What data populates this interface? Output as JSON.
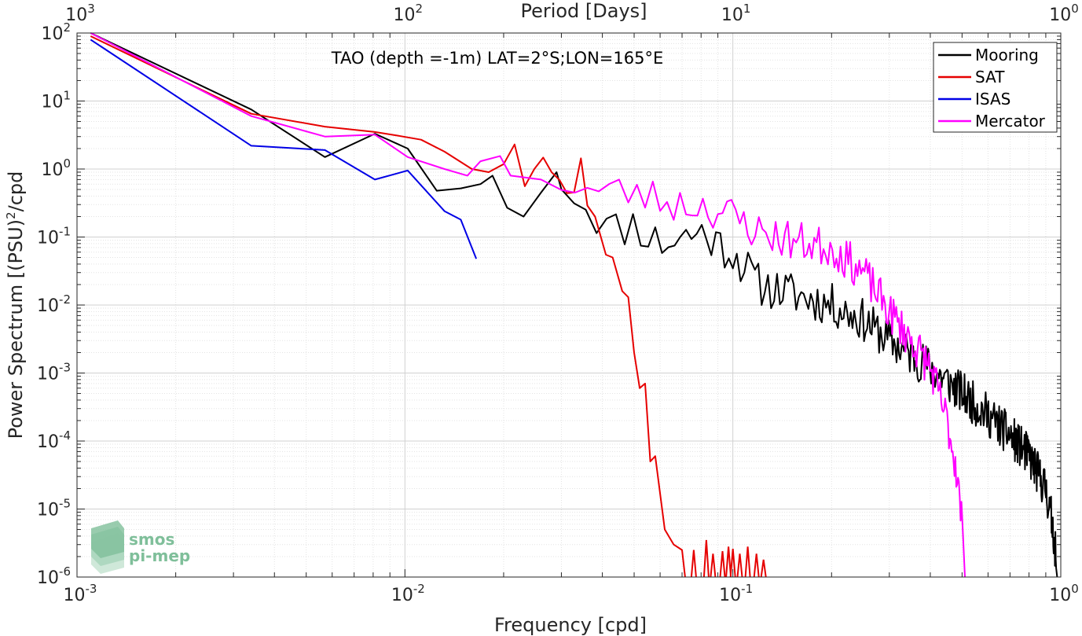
{
  "chart_data": {
    "type": "line",
    "annotation": "TAO (depth =-1m) LAT=2°S;LON=165°E",
    "xlabel": "Frequency [cpd]",
    "ylabel": "Power Spectrum [(PSU)",
    "ylabel_sup": "2",
    "ylabel_tail": "/cpd",
    "top_axis_label": "Period [Days]",
    "xscale": "log",
    "yscale": "log",
    "xlim": [
      0.001,
      1
    ],
    "ylim": [
      1e-06,
      100
    ],
    "grid": true,
    "legend_position": "top-right",
    "x_ticks": [
      {
        "value": 0.001,
        "base": "10",
        "exp": "-3"
      },
      {
        "value": 0.01,
        "base": "10",
        "exp": "-2"
      },
      {
        "value": 0.1,
        "base": "10",
        "exp": "-1"
      },
      {
        "value": 1,
        "base": "10",
        "exp": "0"
      }
    ],
    "y_ticks": [
      {
        "value": 1e-06,
        "base": "10",
        "exp": "-6"
      },
      {
        "value": 1e-05,
        "base": "10",
        "exp": "-5"
      },
      {
        "value": 0.0001,
        "base": "10",
        "exp": "-4"
      },
      {
        "value": 0.001,
        "base": "10",
        "exp": "-3"
      },
      {
        "value": 0.01,
        "base": "10",
        "exp": "-2"
      },
      {
        "value": 0.1,
        "base": "10",
        "exp": "-1"
      },
      {
        "value": 1,
        "base": "10",
        "exp": "0"
      },
      {
        "value": 10,
        "base": "10",
        "exp": "1"
      },
      {
        "value": 100,
        "base": "10",
        "exp": "2"
      }
    ],
    "top_ticks": [
      {
        "value": 0.001,
        "base": "10",
        "exp": "3"
      },
      {
        "value": 0.01,
        "base": "10",
        "exp": "2"
      },
      {
        "value": 0.1,
        "base": "10",
        "exp": "1"
      },
      {
        "value": 1,
        "base": "10",
        "exp": "0"
      }
    ],
    "series": [
      {
        "name": "Mooring",
        "color": "#000000",
        "noise": {
          "from": 0.03,
          "to": 0.97,
          "step": 0.0028,
          "amp": 0.32,
          "seed": 11
        },
        "points": [
          [
            0.0011,
            100
          ],
          [
            0.0034,
            7.5
          ],
          [
            0.0057,
            1.5
          ],
          [
            0.0081,
            3.3
          ],
          [
            0.0102,
            2.0
          ],
          [
            0.0125,
            0.48
          ],
          [
            0.0148,
            0.52
          ],
          [
            0.017,
            0.6
          ],
          [
            0.0185,
            0.8
          ],
          [
            0.0205,
            0.27
          ],
          [
            0.023,
            0.2
          ],
          [
            0.026,
            0.45
          ],
          [
            0.029,
            0.9
          ],
          [
            0.033,
            0.42
          ],
          [
            0.037,
            0.27
          ],
          [
            0.042,
            0.12
          ],
          [
            0.05,
            0.16
          ],
          [
            0.06,
            0.08
          ],
          [
            0.07,
            0.1
          ],
          [
            0.08,
            0.12
          ],
          [
            0.09,
            0.08
          ],
          [
            0.1,
            0.06
          ],
          [
            0.12,
            0.02
          ],
          [
            0.15,
            0.015
          ],
          [
            0.2,
            0.01
          ],
          [
            0.25,
            0.006
          ],
          [
            0.3,
            0.003
          ],
          [
            0.4,
            0.0012
          ],
          [
            0.5,
            0.0005
          ],
          [
            0.6,
            0.00024
          ],
          [
            0.7,
            0.00012
          ],
          [
            0.8,
            6e-05
          ],
          [
            0.9,
            2e-05
          ],
          [
            0.95,
            5e-06
          ],
          [
            0.975,
            1e-06
          ]
        ]
      },
      {
        "name": "SAT",
        "color": "#e60000",
        "noise": {
          "from": 0.02,
          "to": 0.036,
          "step": 0.0016,
          "amp": 0.25,
          "seed": 5
        },
        "points": [
          [
            0.0011,
            90
          ],
          [
            0.0034,
            6.5
          ],
          [
            0.0057,
            4.2
          ],
          [
            0.0081,
            3.5
          ],
          [
            0.0095,
            3.1
          ],
          [
            0.0112,
            2.7
          ],
          [
            0.0132,
            1.8
          ],
          [
            0.016,
            1.0
          ],
          [
            0.018,
            0.9
          ],
          [
            0.0212,
            2.2
          ],
          [
            0.024,
            0.5
          ],
          [
            0.027,
            1.4
          ],
          [
            0.0305,
            0.55
          ],
          [
            0.0345,
            0.95
          ],
          [
            0.038,
            0.2
          ],
          [
            0.041,
            0.055
          ],
          [
            0.043,
            0.05
          ],
          [
            0.046,
            0.016
          ],
          [
            0.048,
            0.013
          ],
          [
            0.05,
            0.002
          ],
          [
            0.052,
            0.0006
          ],
          [
            0.054,
            0.0007
          ],
          [
            0.056,
            5e-05
          ],
          [
            0.058,
            6e-05
          ],
          [
            0.062,
            5e-06
          ],
          [
            0.066,
            3e-06
          ],
          [
            0.07,
            2.5e-06
          ],
          [
            0.0715,
            1e-06
          ]
        ],
        "spikes": [
          [
            0.076,
            2.5e-06
          ],
          [
            0.083,
            3.5e-06
          ],
          [
            0.087,
            2.2e-06
          ],
          [
            0.093,
            2.4e-06
          ],
          [
            0.097,
            2.8e-06
          ],
          [
            0.1,
            2.6e-06
          ],
          [
            0.105,
            2.2e-06
          ],
          [
            0.111,
            2.8e-06
          ],
          [
            0.118,
            2.2e-06
          ],
          [
            0.124,
            1.8e-06
          ]
        ]
      },
      {
        "name": "ISAS",
        "color": "#0000e6",
        "points": [
          [
            0.0011,
            80
          ],
          [
            0.0034,
            2.2
          ],
          [
            0.0057,
            1.9
          ],
          [
            0.0081,
            0.7
          ],
          [
            0.0102,
            0.95
          ],
          [
            0.0132,
            0.24
          ],
          [
            0.0148,
            0.18
          ],
          [
            0.0165,
            0.048
          ]
        ]
      },
      {
        "name": "Mercator",
        "color": "#ff00ff",
        "noise": {
          "from": 0.03,
          "to": 0.5,
          "step": 0.003,
          "amp": 0.3,
          "seed": 23
        },
        "points": [
          [
            0.0011,
            110
          ],
          [
            0.0034,
            6.0
          ],
          [
            0.0057,
            3.0
          ],
          [
            0.0081,
            3.2
          ],
          [
            0.0102,
            1.5
          ],
          [
            0.0132,
            1.0
          ],
          [
            0.0155,
            0.8
          ],
          [
            0.017,
            1.3
          ],
          [
            0.0195,
            1.55
          ],
          [
            0.021,
            0.8
          ],
          [
            0.026,
            0.7
          ],
          [
            0.03,
            0.7
          ],
          [
            0.034,
            0.5
          ],
          [
            0.04,
            0.45
          ],
          [
            0.05,
            0.45
          ],
          [
            0.06,
            0.35
          ],
          [
            0.07,
            0.3
          ],
          [
            0.08,
            0.3
          ],
          [
            0.1,
            0.2
          ],
          [
            0.12,
            0.12
          ],
          [
            0.15,
            0.09
          ],
          [
            0.2,
            0.07
          ],
          [
            0.25,
            0.03
          ],
          [
            0.3,
            0.008
          ],
          [
            0.35,
            0.003
          ],
          [
            0.4,
            0.0012
          ],
          [
            0.45,
            0.0002
          ],
          [
            0.48,
            4e-05
          ],
          [
            0.5,
            6e-06
          ],
          [
            0.51,
            1e-06
          ]
        ]
      }
    ]
  },
  "logo": {
    "line1": "smos",
    "line2": "pi-mep"
  }
}
